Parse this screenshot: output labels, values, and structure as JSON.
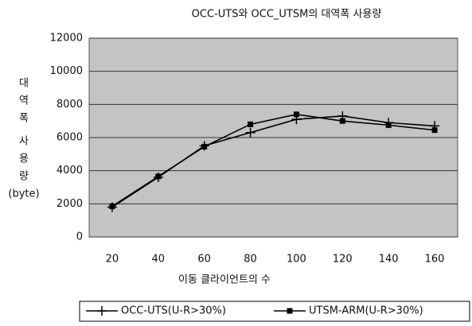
{
  "chart_data": {
    "type": "line",
    "title": "OCC-UTS와 OCC_UTSM의 대역폭 사용량",
    "y_label": [
      "대",
      "역",
      "폭",
      "사",
      "용",
      "량",
      "(byte)"
    ],
    "x_label": "이동 클라이언트의 수",
    "categories": [
      "20",
      "40",
      "60",
      "80",
      "100",
      "120",
      "140",
      "160"
    ],
    "series": [
      {
        "name": "OCC-UTS(U-R>30%)",
        "color": "#000000",
        "marker": "plus",
        "values": [
          1800,
          3600,
          5500,
          6300,
          7100,
          7300,
          6900,
          6700
        ]
      },
      {
        "name": "UTSM-ARM(U-R>30%)",
        "color": "#000000",
        "marker": "square",
        "values": [
          1850,
          3650,
          5450,
          6800,
          7400,
          7000,
          6750,
          6450
        ]
      }
    ],
    "ylim": [
      0,
      12000
    ],
    "yticks": [
      0,
      2000,
      4000,
      6000,
      8000,
      10000,
      12000
    ],
    "grid": true,
    "legend": "bottom",
    "plot_background": "#c4c4c4"
  }
}
